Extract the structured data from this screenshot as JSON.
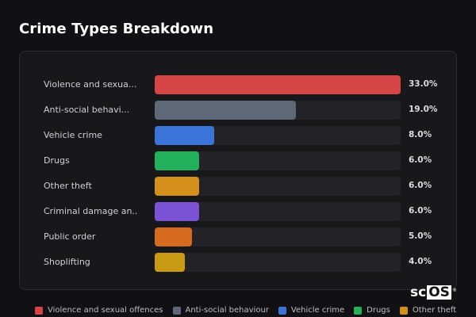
{
  "chart_data": {
    "type": "bar",
    "orientation": "horizontal",
    "title": "Crime Types Breakdown",
    "categories": [
      "Violence and sexua...",
      "Anti-social behavi...",
      "Vehicle crime",
      "Drugs",
      "Other theft",
      "Criminal damage an...",
      "Public order",
      "Shoplifting"
    ],
    "values": [
      33.0,
      19.0,
      8.0,
      6.0,
      6.0,
      6.0,
      5.0,
      4.0
    ],
    "value_labels": [
      "33.0%",
      "19.0%",
      "8.0%",
      "6.0%",
      "6.0%",
      "6.0%",
      "5.0%",
      "4.0%"
    ],
    "colors": [
      "#d64545",
      "#5f6878",
      "#3b74d9",
      "#22b05a",
      "#d4901a",
      "#7b52d6",
      "#d66a1e",
      "#c99a14"
    ],
    "xlim": [
      0,
      33
    ],
    "grid": false,
    "legend": {
      "placement": "bottom",
      "entries": [
        "Violence and sexual offences",
        "Anti-social behaviour",
        "Vehicle crime",
        "Drugs",
        "Other theft"
      ],
      "colors": [
        "#d64545",
        "#5f6878",
        "#3b74d9",
        "#22b05a",
        "#d4901a"
      ]
    }
  },
  "watermark": {
    "text": "scOS"
  }
}
